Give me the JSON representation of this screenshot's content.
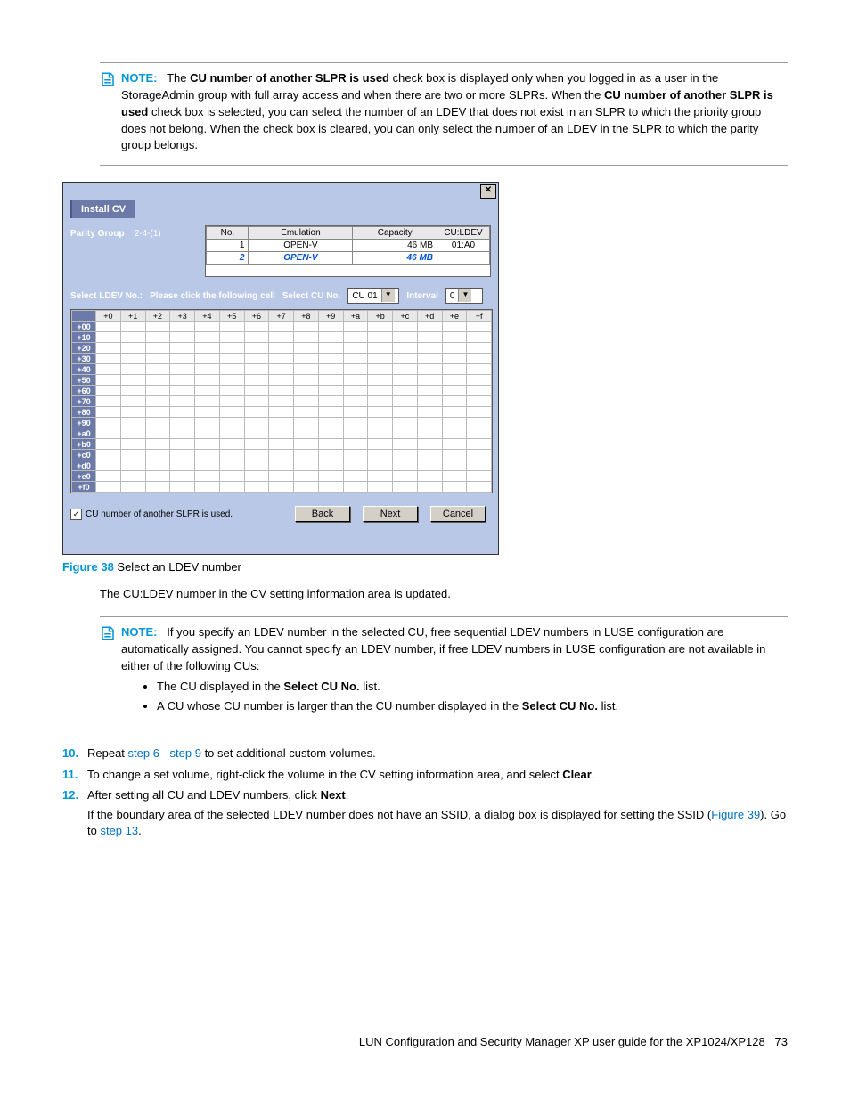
{
  "note1": {
    "label": "NOTE:",
    "t1": "The ",
    "b1": "CU number of another SLPR is used",
    "t2": " check box is displayed only when you logged in as a user in the StorageAdmin group with full array access and when there are two or more SLPRs. When the ",
    "b2": "CU number of another SLPR is used",
    "t3": " check box is selected, you can select the number of an LDEV that does not exist in an SLPR to which the priority group does not belong. When the check box is cleared, you can only select the number of an LDEV in the SLPR to which the parity group belongs."
  },
  "dialog": {
    "title": "Install CV",
    "parity_label": "Parity Group",
    "parity_value": "2-4-(1)",
    "cv_cols": {
      "no": "No.",
      "emu": "Emulation",
      "cap": "Capacity",
      "culdev": "CU:LDEV"
    },
    "cv_rows": [
      {
        "no": "1",
        "emu": "OPEN-V",
        "cap": "46 MB",
        "culdev": "01:A0",
        "hl": false
      },
      {
        "no": "2",
        "emu": "OPEN-V",
        "cap": "46 MB",
        "culdev": "",
        "hl": true
      }
    ],
    "sel_ldev_label": "Select LDEV No.:",
    "click_hint": "Please click the following cell",
    "sel_cu_label": "Select CU No.",
    "cu_value": "CU 01",
    "interval_label": "Interval",
    "interval_value": "0",
    "col_headers": [
      "+0",
      "+1",
      "+2",
      "+3",
      "+4",
      "+5",
      "+6",
      "+7",
      "+8",
      "+9",
      "+a",
      "+b",
      "+c",
      "+d",
      "+e",
      "+f"
    ],
    "row_headers": [
      "+00",
      "+10",
      "+20",
      "+30",
      "+40",
      "+50",
      "+60",
      "+70",
      "+80",
      "+90",
      "+a0",
      "+b0",
      "+c0",
      "+d0",
      "+e0",
      "+f0"
    ],
    "chk_label": "CU number of another SLPR is used.",
    "btn_back": "Back",
    "btn_next": "Next",
    "btn_cancel": "Cancel"
  },
  "figure": {
    "num": "Figure 38",
    "title": " Select an LDEV number"
  },
  "after_figure": "The CU:LDEV number in the CV setting information area is updated.",
  "note2": {
    "label": "NOTE:",
    "text": "If you specify an LDEV number in the selected CU, free sequential LDEV numbers in LUSE configuration are automatically assigned. You cannot specify an LDEV number, if free LDEV numbers in LUSE configuration are not available in either of the following CUs:",
    "b1a": "The CU displayed in the ",
    "b1b": "Select CU No.",
    "b1c": " list.",
    "b2a": "A CU whose CU number is larger than the CU number displayed in the ",
    "b2b": "Select CU No.",
    "b2c": " list."
  },
  "steps": {
    "s10": {
      "n": "10.",
      "t1": "Repeat ",
      "l1": "step 6",
      "t2": " - ",
      "l2": "step 9",
      "t3": " to set additional custom volumes."
    },
    "s11": {
      "n": "11.",
      "t1": "To change a set volume, right-click the volume in the CV setting information area, and select ",
      "b": "Clear",
      "t2": "."
    },
    "s12": {
      "n": "12.",
      "t1": "After setting all CU and LDEV numbers, click ",
      "b": "Next",
      "t2": "."
    },
    "s12sub": {
      "t1": "If the boundary area of the selected LDEV number does not have an SSID, a dialog box is displayed for setting the SSID (",
      "l1": "Figure 39",
      "t2": "). Go to ",
      "l2": "step 13",
      "t3": "."
    }
  },
  "footer": {
    "text": "LUN Configuration and Security Manager XP user guide for the XP1024/XP128",
    "page": "73"
  }
}
